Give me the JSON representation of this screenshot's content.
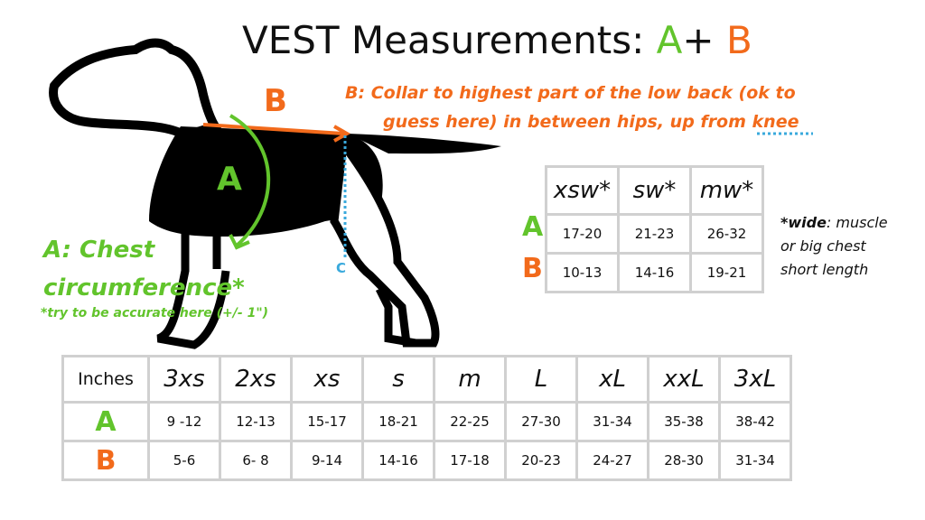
{
  "title": {
    "text": "VEST Measurements:",
    "a": "A",
    "plus": "+",
    "b": "B"
  },
  "diagram": {
    "label_b": "B",
    "label_a": "A",
    "label_c": "C",
    "desc_a_line1": "A: Chest",
    "desc_a_line2": "circumference*",
    "desc_a_note": "*try to be accurate here (+/- 1\")",
    "desc_b_line1": "B: Collar to highest part of the low back (ok to",
    "desc_b_line2": "guess here) in between hips, up from",
    "desc_b_knee": "knee"
  },
  "wide_table": {
    "headers": [
      "xsw*",
      "sw*",
      "mw*"
    ],
    "rows": [
      {
        "label": "A",
        "values": [
          "17-20",
          "21-23",
          "26-32"
        ]
      },
      {
        "label": "B",
        "values": [
          "10-13",
          "14-16",
          "19-21"
        ]
      }
    ]
  },
  "note": {
    "emph": "*wide",
    "line1": ": muscle",
    "line2": "or big chest",
    "line3": "short length"
  },
  "size_table": {
    "corner": "Inches",
    "headers": [
      "3xs",
      "2xs",
      "xs",
      "s",
      "m",
      "L",
      "xL",
      "xxL",
      "3xL"
    ],
    "rows": [
      {
        "label": "A",
        "values": [
          "9 -12",
          "12-13",
          "15-17",
          "18-21",
          "22-25",
          "27-30",
          "31-34",
          "35-38",
          "38-42"
        ]
      },
      {
        "label": "B",
        "values": [
          "5-6",
          "6- 8",
          "9-14",
          "14-16",
          "17-18",
          "20-23",
          "24-27",
          "28-30",
          "31-34"
        ]
      }
    ]
  }
}
